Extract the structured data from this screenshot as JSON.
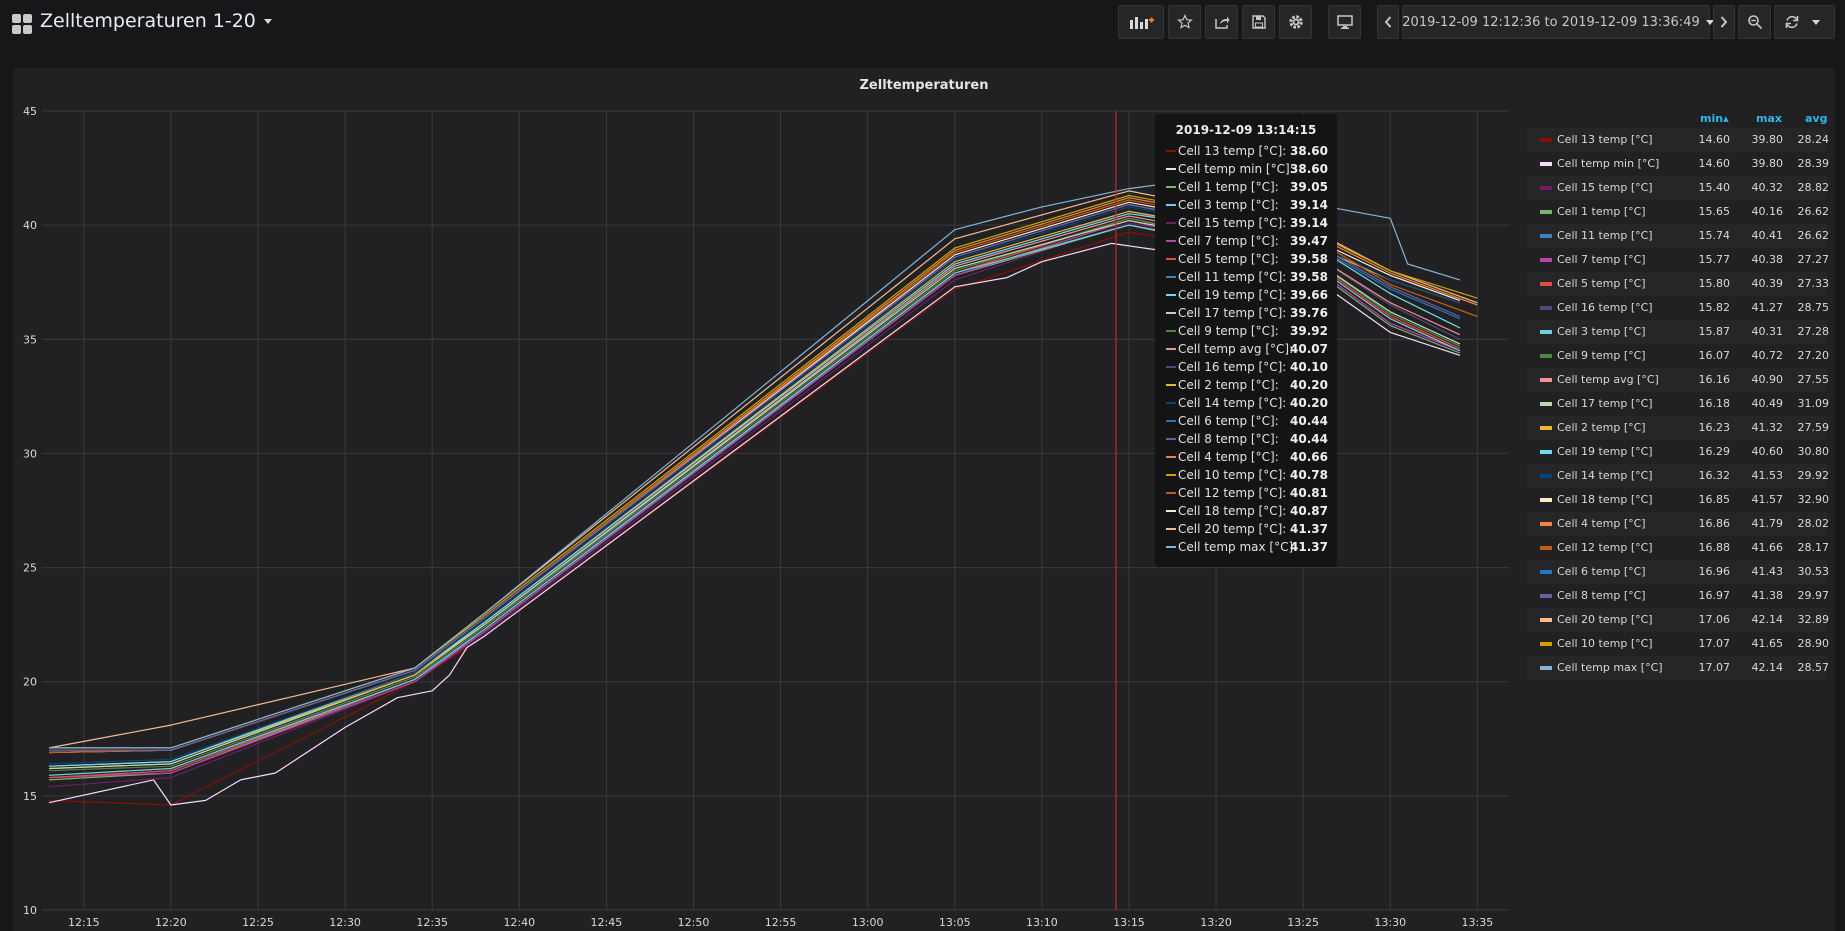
{
  "header": {
    "title": "Zelltemperaturen 1-20",
    "time_range": "2019-12-09 12:12:36 to 2019-12-09 13:36:49"
  },
  "panel": {
    "title": "Zelltemperaturen"
  },
  "tooltip": {
    "time": "2019-12-09 13:14:15",
    "rows": [
      {
        "name": "Cell 13 temp [°C]:",
        "value": "38.60",
        "color": "#890f02"
      },
      {
        "name": "Cell temp min [°C]:",
        "value": "38.60",
        "color": "#f9d9f9"
      },
      {
        "name": "Cell 1 temp [°C]:",
        "value": "39.05",
        "color": "#7eb26d"
      },
      {
        "name": "Cell 3 temp [°C]:",
        "value": "39.14",
        "color": "#6ed0e0"
      },
      {
        "name": "Cell 15 temp [°C]:",
        "value": "39.14",
        "color": "#6d1f62"
      },
      {
        "name": "Cell 7 temp [°C]:",
        "value": "39.47",
        "color": "#ba43a9"
      },
      {
        "name": "Cell 5 temp [°C]:",
        "value": "39.58",
        "color": "#e24d42"
      },
      {
        "name": "Cell 11 temp [°C]:",
        "value": "39.58",
        "color": "#447ebc"
      },
      {
        "name": "Cell 19 temp [°C]:",
        "value": "39.66",
        "color": "#70dbed"
      },
      {
        "name": "Cell 17 temp [°C]:",
        "value": "39.76",
        "color": "#b7dbab"
      },
      {
        "name": "Cell 9 temp [°C]:",
        "value": "39.92",
        "color": "#508642"
      },
      {
        "name": "Cell temp avg [°C]:",
        "value": "40.07",
        "color": "#f29191"
      },
      {
        "name": "Cell 16 temp [°C]:",
        "value": "40.10",
        "color": "#584477"
      },
      {
        "name": "Cell 2 temp [°C]:",
        "value": "40.20",
        "color": "#eab839"
      },
      {
        "name": "Cell 14 temp [°C]:",
        "value": "40.20",
        "color": "#0a437c"
      },
      {
        "name": "Cell 6 temp [°C]:",
        "value": "40.44",
        "color": "#1f78c1"
      },
      {
        "name": "Cell 8 temp [°C]:",
        "value": "40.44",
        "color": "#705da0"
      },
      {
        "name": "Cell 4 temp [°C]:",
        "value": "40.66",
        "color": "#ef843c"
      },
      {
        "name": "Cell 10 temp [°C]:",
        "value": "40.78",
        "color": "#cca300"
      },
      {
        "name": "Cell 12 temp [°C]:",
        "value": "40.81",
        "color": "#c15c17"
      },
      {
        "name": "Cell 18 temp [°C]:",
        "value": "40.87",
        "color": "#fceaca"
      },
      {
        "name": "Cell 20 temp [°C]:",
        "value": "41.37",
        "color": "#f9ba8f"
      },
      {
        "name": "Cell temp max [°C]:",
        "value": "41.37",
        "color": "#82b5d8"
      }
    ]
  },
  "legend": {
    "headers": {
      "min": "min",
      "max": "max",
      "avg": "avg"
    },
    "rows": [
      {
        "name": "Cell 13 temp [°C]",
        "min": "14.60",
        "max": "39.80",
        "avg": "28.24",
        "color": "#890f02"
      },
      {
        "name": "Cell temp min [°C]",
        "min": "14.60",
        "max": "39.80",
        "avg": "28.39",
        "color": "#f9d9f9"
      },
      {
        "name": "Cell 15 temp [°C]",
        "min": "15.40",
        "max": "40.32",
        "avg": "28.82",
        "color": "#6d1f62"
      },
      {
        "name": "Cell 1 temp [°C]",
        "min": "15.65",
        "max": "40.16",
        "avg": "26.62",
        "color": "#7eb26d"
      },
      {
        "name": "Cell 11 temp [°C]",
        "min": "15.74",
        "max": "40.41",
        "avg": "26.62",
        "color": "#447ebc"
      },
      {
        "name": "Cell 7 temp [°C]",
        "min": "15.77",
        "max": "40.38",
        "avg": "27.27",
        "color": "#ba43a9"
      },
      {
        "name": "Cell 5 temp [°C]",
        "min": "15.80",
        "max": "40.39",
        "avg": "27.33",
        "color": "#e24d42"
      },
      {
        "name": "Cell 16 temp [°C]",
        "min": "15.82",
        "max": "41.27",
        "avg": "28.75",
        "color": "#584477"
      },
      {
        "name": "Cell 3 temp [°C]",
        "min": "15.87",
        "max": "40.31",
        "avg": "27.28",
        "color": "#6ed0e0"
      },
      {
        "name": "Cell 9 temp [°C]",
        "min": "16.07",
        "max": "40.72",
        "avg": "27.20",
        "color": "#508642"
      },
      {
        "name": "Cell temp avg [°C]",
        "min": "16.16",
        "max": "40.90",
        "avg": "27.55",
        "color": "#f29191"
      },
      {
        "name": "Cell 17 temp [°C]",
        "min": "16.18",
        "max": "40.49",
        "avg": "31.09",
        "color": "#b7dbab"
      },
      {
        "name": "Cell 2 temp [°C]",
        "min": "16.23",
        "max": "41.32",
        "avg": "27.59",
        "color": "#eab839"
      },
      {
        "name": "Cell 19 temp [°C]",
        "min": "16.29",
        "max": "40.60",
        "avg": "30.80",
        "color": "#70dbed"
      },
      {
        "name": "Cell 14 temp [°C]",
        "min": "16.32",
        "max": "41.53",
        "avg": "29.92",
        "color": "#0a437c"
      },
      {
        "name": "Cell 18 temp [°C]",
        "min": "16.85",
        "max": "41.57",
        "avg": "32.90",
        "color": "#fceaca"
      },
      {
        "name": "Cell 4 temp [°C]",
        "min": "16.86",
        "max": "41.79",
        "avg": "28.02",
        "color": "#ef843c"
      },
      {
        "name": "Cell 12 temp [°C]",
        "min": "16.88",
        "max": "41.66",
        "avg": "28.17",
        "color": "#c15c17"
      },
      {
        "name": "Cell 6 temp [°C]",
        "min": "16.96",
        "max": "41.43",
        "avg": "30.53",
        "color": "#1f78c1"
      },
      {
        "name": "Cell 8 temp [°C]",
        "min": "16.97",
        "max": "41.38",
        "avg": "29.97",
        "color": "#705da0"
      },
      {
        "name": "Cell 20 temp [°C]",
        "min": "17.06",
        "max": "42.14",
        "avg": "32.89",
        "color": "#f9ba8f"
      },
      {
        "name": "Cell 10 temp [°C]",
        "min": "17.07",
        "max": "41.65",
        "avg": "28.90",
        "color": "#cca300"
      },
      {
        "name": "Cell temp max [°C]",
        "min": "17.07",
        "max": "42.14",
        "avg": "28.57",
        "color": "#82b5d8"
      }
    ]
  },
  "chart_data": {
    "type": "line",
    "title": "Zelltemperaturen",
    "xlabel": "",
    "ylabel": "",
    "ylim": [
      10,
      45
    ],
    "xlim": [
      "12:12:36",
      "13:36:49"
    ],
    "yticks": [
      10,
      15,
      20,
      25,
      30,
      35,
      40,
      45
    ],
    "xticks": [
      "12:15",
      "12:20",
      "12:25",
      "12:30",
      "12:35",
      "12:40",
      "12:45",
      "12:50",
      "12:55",
      "13:00",
      "13:05",
      "13:10",
      "13:15",
      "13:20",
      "13:25",
      "13:30",
      "13:35"
    ],
    "grid": true,
    "legend_position": "right",
    "cursor_time": "13:14:15",
    "series": [
      {
        "name": "Cell 13 temp [°C]",
        "color": "#890f02",
        "x": [
          "12:13",
          "12:20",
          "12:34",
          "12:38",
          "13:05",
          "13:15",
          "13:25",
          "13:30",
          "13:34"
        ],
        "values": [
          14.8,
          14.6,
          20.0,
          22.0,
          37.2,
          39.7,
          38.5,
          36.0,
          34.5
        ]
      },
      {
        "name": "Cell temp min [°C]",
        "color": "#f9d9f9",
        "x": [
          "12:13",
          "12:19",
          "12:20",
          "12:22",
          "12:24",
          "12:26",
          "12:30",
          "12:33",
          "12:35",
          "12:36",
          "12:37",
          "12:38",
          "13:05",
          "13:08",
          "13:10",
          "13:14",
          "13:25",
          "13:30",
          "13:34"
        ],
        "values": [
          14.7,
          15.7,
          14.6,
          14.8,
          15.7,
          16.0,
          18.0,
          19.3,
          19.6,
          20.3,
          21.5,
          22.0,
          37.3,
          37.7,
          38.4,
          39.2,
          38.0,
          35.3,
          34.3
        ]
      },
      {
        "name": "Cell 15 temp [°C]",
        "color": "#6d1f62",
        "x": [
          "12:13",
          "12:20",
          "12:34",
          "12:38",
          "13:05",
          "13:15",
          "13:25",
          "13:30",
          "13:34"
        ],
        "values": [
          15.4,
          15.8,
          20.0,
          22.1,
          37.6,
          40.1,
          38.6,
          35.9,
          34.5
        ]
      },
      {
        "name": "Cell 1 temp [°C]",
        "color": "#7eb26d",
        "x": [
          "12:13",
          "12:20",
          "12:34",
          "12:38",
          "13:05",
          "13:15",
          "13:25",
          "13:30",
          "13:34"
        ],
        "values": [
          15.7,
          16.0,
          20.1,
          22.2,
          37.8,
          40.0,
          38.4,
          35.6,
          34.4
        ]
      },
      {
        "name": "Cell 11 temp [°C]",
        "color": "#447ebc",
        "x": [
          "12:13",
          "12:20",
          "12:34",
          "12:38",
          "13:05",
          "13:15",
          "13:25",
          "13:30",
          "13:34"
        ],
        "values": [
          15.8,
          16.1,
          20.1,
          22.2,
          37.9,
          40.3,
          38.7,
          36.2,
          34.8
        ]
      },
      {
        "name": "Cell 7 temp [°C]",
        "color": "#ba43a9",
        "x": [
          "12:13",
          "12:20",
          "12:34",
          "12:38",
          "13:05",
          "13:15",
          "13:25",
          "13:30",
          "13:34"
        ],
        "values": [
          15.8,
          16.0,
          20.0,
          22.2,
          37.8,
          40.2,
          38.5,
          35.7,
          34.5
        ]
      },
      {
        "name": "Cell 5 temp [°C]",
        "color": "#e24d42",
        "x": [
          "12:13",
          "12:20",
          "12:34",
          "12:38",
          "13:05",
          "13:15",
          "13:25",
          "13:30",
          "13:34"
        ],
        "values": [
          15.8,
          16.1,
          20.1,
          22.3,
          37.9,
          40.3,
          38.7,
          36.0,
          34.6
        ]
      },
      {
        "name": "Cell 16 temp [°C]",
        "color": "#584477",
        "x": [
          "12:13",
          "12:20",
          "12:34",
          "12:38",
          "13:05",
          "13:15",
          "13:25",
          "13:30",
          "13:34"
        ],
        "values": [
          15.9,
          16.2,
          20.2,
          22.4,
          38.2,
          40.6,
          39.0,
          36.5,
          35.0
        ]
      },
      {
        "name": "Cell 3 temp [°C]",
        "color": "#6ed0e0",
        "x": [
          "12:13",
          "12:20",
          "12:34",
          "12:38",
          "13:05",
          "13:15",
          "13:25",
          "13:30",
          "13:34"
        ],
        "values": [
          15.9,
          16.2,
          20.1,
          22.3,
          37.9,
          40.0,
          38.6,
          35.9,
          34.5
        ]
      },
      {
        "name": "Cell 9 temp [°C]",
        "color": "#508642",
        "x": [
          "12:13",
          "12:20",
          "12:34",
          "12:38",
          "13:05",
          "13:15",
          "13:25",
          "13:30",
          "13:34"
        ],
        "values": [
          16.1,
          16.3,
          20.2,
          22.4,
          38.0,
          40.3,
          38.8,
          36.1,
          34.7
        ]
      },
      {
        "name": "Cell temp avg [°C]",
        "color": "#f29191",
        "x": [
          "12:13",
          "12:20",
          "12:34",
          "12:38",
          "13:05",
          "13:15",
          "13:25",
          "13:30",
          "13:34"
        ],
        "values": [
          16.2,
          16.4,
          20.3,
          22.5,
          38.2,
          40.4,
          39.0,
          36.6,
          35.2
        ]
      },
      {
        "name": "Cell 17 temp [°C]",
        "color": "#b7dbab",
        "x": [
          "12:13",
          "12:20",
          "12:34",
          "12:38",
          "13:05",
          "13:15",
          "13:25",
          "13:30",
          "13:34"
        ],
        "values": [
          16.2,
          16.4,
          20.3,
          22.5,
          38.1,
          40.2,
          38.8,
          36.2,
          34.8
        ]
      },
      {
        "name": "Cell 2 temp [°C]",
        "color": "#eab839",
        "x": [
          "12:13",
          "12:20",
          "12:34",
          "12:38",
          "13:05",
          "13:15",
          "13:25",
          "13:30",
          "13:34"
        ],
        "values": [
          16.3,
          16.5,
          20.3,
          22.6,
          38.4,
          40.6,
          39.3,
          37.6,
          36.6
        ]
      },
      {
        "name": "Cell 19 temp [°C]",
        "color": "#70dbed",
        "x": [
          "12:13",
          "12:20",
          "12:34",
          "12:38",
          "13:05",
          "13:15",
          "13:25",
          "13:30",
          "13:34"
        ],
        "values": [
          16.3,
          16.5,
          20.4,
          22.6,
          38.3,
          40.5,
          39.4,
          37.0,
          35.5
        ]
      },
      {
        "name": "Cell 14 temp [°C]",
        "color": "#0a437c",
        "x": [
          "12:13",
          "12:20",
          "12:34",
          "12:38",
          "13:05",
          "13:15",
          "13:25",
          "13:30",
          "13:34"
        ],
        "values": [
          16.4,
          16.6,
          20.4,
          22.7,
          38.5,
          40.8,
          39.5,
          37.6,
          36.6
        ]
      },
      {
        "name": "Cell 18 temp [°C]",
        "color": "#fceaca",
        "x": [
          "12:13",
          "12:20",
          "12:34",
          "12:38",
          "13:05",
          "13:15",
          "13:25",
          "13:30",
          "13:34"
        ],
        "values": [
          16.9,
          17.0,
          20.5,
          22.8,
          38.7,
          41.0,
          39.6,
          37.8,
          36.7
        ]
      },
      {
        "name": "Cell 4 temp [°C]",
        "color": "#ef843c",
        "x": [
          "12:13",
          "12:20",
          "12:34",
          "12:38",
          "13:05",
          "13:15",
          "13:25",
          "13:30",
          "13:35"
        ],
        "values": [
          16.9,
          17.0,
          20.5,
          22.8,
          38.9,
          41.2,
          39.8,
          37.9,
          36.5
        ]
      },
      {
        "name": "Cell 12 temp [°C]",
        "color": "#c15c17",
        "x": [
          "12:13",
          "12:20",
          "12:34",
          "12:38",
          "13:05",
          "13:15",
          "13:25",
          "13:30",
          "13:35"
        ],
        "values": [
          16.9,
          17.0,
          20.5,
          22.8,
          38.8,
          41.1,
          39.7,
          37.4,
          36.0
        ]
      },
      {
        "name": "Cell 6 temp [°C]",
        "color": "#1f78c1",
        "x": [
          "12:13",
          "12:20",
          "12:34",
          "12:38",
          "13:05",
          "13:15",
          "13:25",
          "13:30",
          "13:34"
        ],
        "values": [
          17.0,
          17.0,
          20.5,
          22.8,
          38.6,
          40.9,
          39.4,
          37.2,
          35.9
        ]
      },
      {
        "name": "Cell 8 temp [°C]",
        "color": "#705da0",
        "x": [
          "12:13",
          "12:20",
          "12:34",
          "12:38",
          "13:05",
          "13:15",
          "13:25",
          "13:30",
          "13:34"
        ],
        "values": [
          17.0,
          17.0,
          20.5,
          22.8,
          38.6,
          40.9,
          39.5,
          37.3,
          36.0
        ]
      },
      {
        "name": "Cell 20 temp [°C]",
        "color": "#f9ba8f",
        "x": [
          "12:13",
          "12:20",
          "12:34",
          "12:38",
          "13:05",
          "13:15",
          "13:25",
          "13:30",
          "13:35"
        ],
        "values": [
          17.1,
          18.1,
          20.6,
          23.0,
          39.4,
          41.5,
          40.0,
          38.0,
          36.6
        ]
      },
      {
        "name": "Cell 10 temp [°C]",
        "color": "#cca300",
        "x": [
          "12:13",
          "12:20",
          "12:34",
          "12:38",
          "13:05",
          "13:15",
          "13:25",
          "13:30",
          "13:35"
        ],
        "values": [
          17.1,
          17.1,
          20.6,
          22.9,
          39.0,
          41.3,
          39.9,
          38.0,
          36.8
        ]
      },
      {
        "name": "Cell temp max [°C]",
        "color": "#82b5d8",
        "x": [
          "12:13",
          "12:20",
          "12:34",
          "12:38",
          "13:05",
          "13:10",
          "13:15",
          "13:20",
          "13:25",
          "13:30",
          "13:31",
          "13:34"
        ],
        "values": [
          17.1,
          17.1,
          20.6,
          23.0,
          39.8,
          40.8,
          41.6,
          42.1,
          41.0,
          40.3,
          38.3,
          37.6
        ]
      }
    ]
  }
}
